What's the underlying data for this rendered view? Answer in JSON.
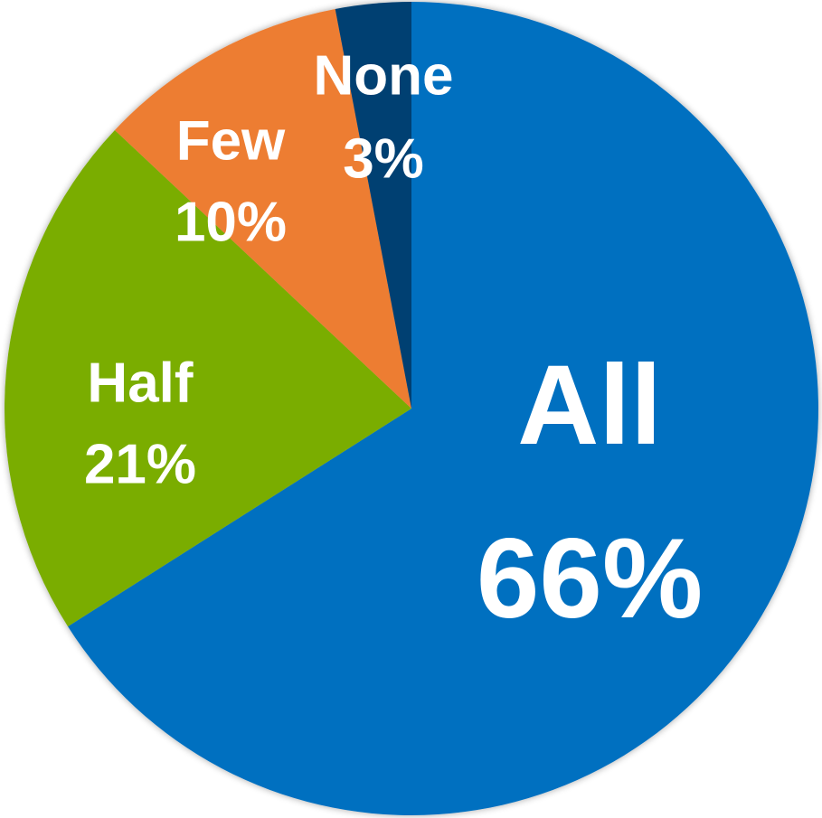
{
  "chart_data": {
    "type": "pie",
    "categories": [
      "All",
      "Half",
      "Few",
      "None"
    ],
    "values": [
      66,
      21,
      10,
      3
    ],
    "value_labels": [
      "66%",
      "21%",
      "10%",
      "3%"
    ],
    "colors": [
      "#0070c0",
      "#7aad06",
      "#ed7d31",
      "#003f72"
    ]
  }
}
